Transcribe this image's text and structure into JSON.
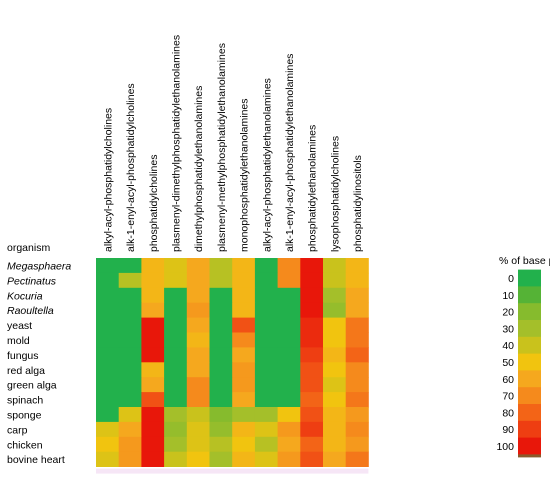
{
  "chart_data": {
    "type": "heatmap",
    "title": "",
    "xlabel": "",
    "ylabel": "",
    "row_header": "organism",
    "columns": [
      "alkyl-acyl-phosphatidylcholines",
      "alk-1-enyl-acyl-phosphatidylcholines",
      "phosphatidylcholines",
      "plasmenyl-dimethylphosphatidylethanolamines",
      "dimethylphosphatidylethanolamines",
      "plasmenyl-methylphosphatidylethanolamines",
      "monophosphatidylethanolamines",
      "alkyl-acyl-phosphatidylethanolamines",
      "alk-1-enyl-acyl-phosphatidylethanolamines",
      "phosphatidylethanolamines",
      "lysophosphatidylcholines",
      "phosphatidylinositols"
    ],
    "rows": [
      {
        "name": "Megasphaera",
        "italic": true
      },
      {
        "name": "Pectinatus",
        "italic": true
      },
      {
        "name": "Kocuria",
        "italic": true
      },
      {
        "name": "Raoultella",
        "italic": true
      },
      {
        "name": "yeast",
        "italic": false
      },
      {
        "name": "mold",
        "italic": false
      },
      {
        "name": "fungus",
        "italic": false
      },
      {
        "name": "red alga",
        "italic": false
      },
      {
        "name": "green alga",
        "italic": false
      },
      {
        "name": "spinach",
        "italic": false
      },
      {
        "name": "sponge",
        "italic": false
      },
      {
        "name": "carp",
        "italic": false
      },
      {
        "name": "chicken",
        "italic": false
      },
      {
        "name": "bovine heart",
        "italic": false
      }
    ],
    "values": [
      [
        0,
        0,
        55,
        45,
        60,
        35,
        55,
        0,
        70,
        100,
        40,
        55
      ],
      [
        0,
        35,
        55,
        45,
        60,
        35,
        55,
        0,
        70,
        100,
        40,
        55
      ],
      [
        0,
        0,
        55,
        0,
        60,
        0,
        55,
        0,
        0,
        100,
        30,
        60
      ],
      [
        0,
        0,
        60,
        0,
        65,
        0,
        55,
        0,
        0,
        100,
        25,
        60
      ],
      [
        0,
        0,
        100,
        0,
        60,
        0,
        85,
        0,
        0,
        95,
        50,
        75
      ],
      [
        0,
        0,
        100,
        0,
        55,
        0,
        70,
        0,
        0,
        95,
        50,
        75
      ],
      [
        0,
        0,
        100,
        0,
        60,
        0,
        60,
        0,
        0,
        90,
        55,
        80
      ],
      [
        0,
        0,
        55,
        0,
        60,
        0,
        65,
        0,
        0,
        85,
        50,
        70
      ],
      [
        0,
        0,
        60,
        0,
        70,
        0,
        65,
        0,
        0,
        85,
        45,
        70
      ],
      [
        0,
        0,
        85,
        0,
        70,
        0,
        60,
        0,
        0,
        80,
        50,
        75
      ],
      [
        0,
        45,
        100,
        30,
        40,
        20,
        30,
        30,
        50,
        85,
        55,
        65
      ],
      [
        45,
        60,
        100,
        25,
        45,
        25,
        55,
        45,
        65,
        90,
        55,
        70
      ],
      [
        50,
        65,
        100,
        30,
        45,
        35,
        50,
        35,
        60,
        80,
        55,
        65
      ],
      [
        45,
        65,
        100,
        40,
        50,
        30,
        55,
        45,
        65,
        85,
        60,
        75
      ]
    ],
    "legend": {
      "title": "% of base peak",
      "ticks": [
        0,
        10,
        20,
        30,
        40,
        50,
        60,
        70,
        80,
        90,
        100
      ],
      "colors": [
        "#22b14c",
        "#55b336",
        "#86bb2d",
        "#a4bf2a",
        "#c9c21c",
        "#f1c40f",
        "#f5a81e",
        "#f58a1c",
        "#f36417",
        "#ee3e12",
        "#e8170a"
      ],
      "placement": "right"
    },
    "grid": false
  }
}
